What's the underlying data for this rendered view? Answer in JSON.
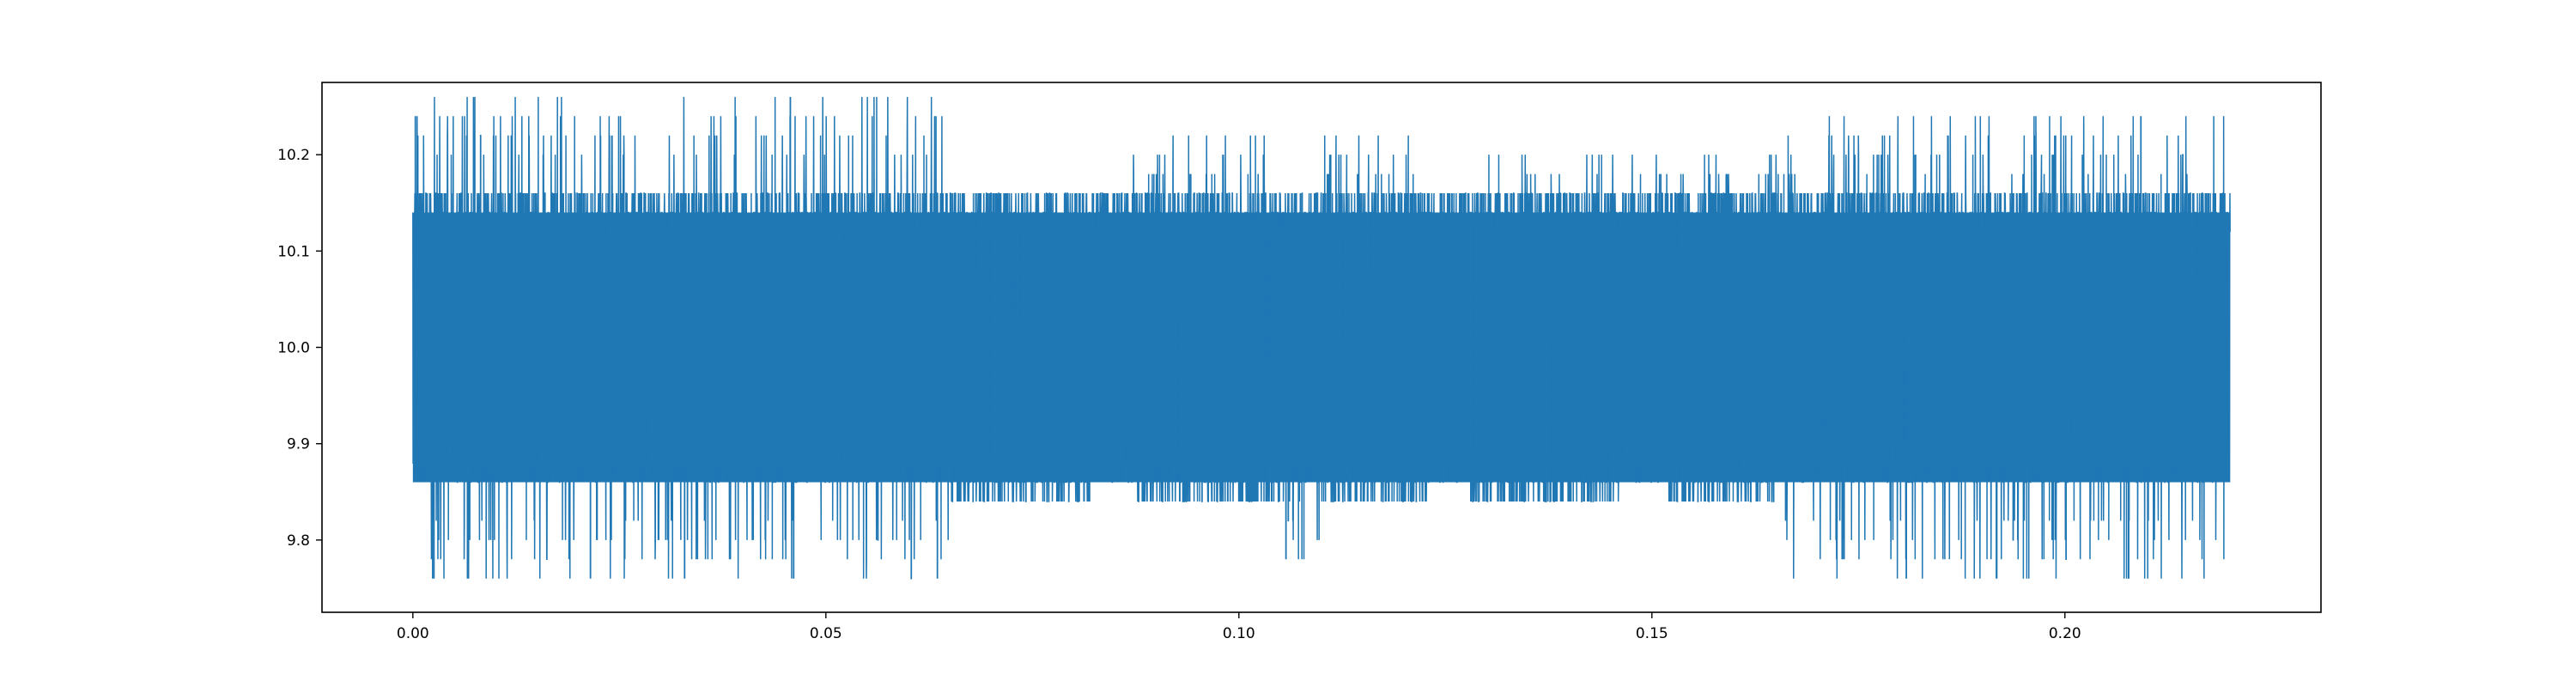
{
  "chart_data": {
    "type": "line",
    "title": "",
    "xlabel": "",
    "ylabel": "",
    "xlim": [
      -0.011,
      0.231
    ],
    "ylim": [
      9.725,
      10.275
    ],
    "x_ticks": [
      {
        "value": 0.0,
        "label": "0.00"
      },
      {
        "value": 0.05,
        "label": "0.05"
      },
      {
        "value": 0.1,
        "label": "0.10"
      },
      {
        "value": 0.15,
        "label": "0.15"
      },
      {
        "value": 0.2,
        "label": "0.20"
      }
    ],
    "y_ticks": [
      {
        "value": 9.8,
        "label": "9.8"
      },
      {
        "value": 9.9,
        "label": "9.9"
      },
      {
        "value": 10.0,
        "label": "10.0"
      },
      {
        "value": 10.1,
        "label": "10.1"
      },
      {
        "value": 10.2,
        "label": "10.2"
      }
    ],
    "grid": false,
    "series": [
      {
        "color": "#1f77b4",
        "x_range": [
          0.0,
          0.22
        ],
        "typical_band": [
          9.86,
          10.14
        ],
        "segments": [
          {
            "x": [
              0.0,
              0.065
            ],
            "dense_band": [
              9.86,
              10.16
            ],
            "spike_max": 10.26,
            "spike_min": 9.76
          },
          {
            "x": [
              0.065,
              0.082
            ],
            "dense_band": [
              9.84,
              10.16
            ],
            "spike_max": 10.16,
            "spike_min": 9.84
          },
          {
            "x": [
              0.082,
              0.087
            ],
            "dense_band": [
              9.86,
              10.16
            ],
            "spike_max": 10.16,
            "spike_min": 9.86
          },
          {
            "x": [
              0.087,
              0.105
            ],
            "dense_band": [
              9.84,
              10.16
            ],
            "spike_max": 10.22,
            "spike_min": 9.84
          },
          {
            "x": [
              0.105,
              0.11
            ],
            "dense_band": [
              9.86,
              10.16
            ],
            "spike_max": 10.16,
            "spike_min": 9.78
          },
          {
            "x": [
              0.11,
              0.123
            ],
            "dense_band": [
              9.84,
              10.16
            ],
            "spike_max": 10.22,
            "spike_min": 9.84
          },
          {
            "x": [
              0.123,
              0.128
            ],
            "dense_band": [
              9.86,
              10.16
            ],
            "spike_max": 10.16,
            "spike_min": 9.86
          },
          {
            "x": [
              0.128,
              0.146
            ],
            "dense_band": [
              9.84,
              10.16
            ],
            "spike_max": 10.2,
            "spike_min": 9.84
          },
          {
            "x": [
              0.146,
              0.152
            ],
            "dense_band": [
              9.86,
              10.16
            ],
            "spike_max": 10.2,
            "spike_min": 9.86
          },
          {
            "x": [
              0.152,
              0.165
            ],
            "dense_band": [
              9.84,
              10.16
            ],
            "spike_max": 10.2,
            "spike_min": 9.84
          },
          {
            "x": [
              0.165,
              0.22
            ],
            "dense_band": [
              9.86,
              10.16
            ],
            "spike_max": 10.24,
            "spike_min": 9.76
          }
        ],
        "notable_extremes": [
          {
            "x": 0.0003,
            "y": 10.24
          },
          {
            "x": 0.0457,
            "y": 10.26
          },
          {
            "x": 0.0024,
            "y": 9.76
          },
          {
            "x": 0.0215,
            "y": 9.76
          },
          {
            "x": 0.0329,
            "y": 9.76
          },
          {
            "x": 0.0461,
            "y": 9.76
          },
          {
            "x": 0.0635,
            "y": 9.76
          },
          {
            "x": 0.1057,
            "y": 9.78
          },
          {
            "x": 0.1808,
            "y": 9.76
          },
          {
            "x": 0.2077,
            "y": 9.76
          },
          {
            "x": 0.2092,
            "y": 10.24
          }
        ]
      }
    ]
  }
}
